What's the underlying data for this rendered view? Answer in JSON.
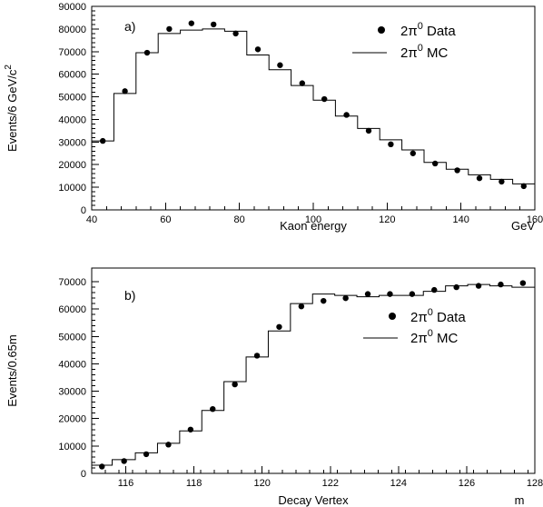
{
  "chart_data": [
    {
      "type": "line",
      "panel_label": "a)",
      "xlabel": "Kaon energy",
      "xunit": "GeV",
      "ylabel": "Events/6 GeV/c",
      "ylabel_sup": "2",
      "xlim": [
        40,
        160
      ],
      "ylim": [
        0,
        90000
      ],
      "xticks": [
        40,
        60,
        80,
        100,
        120,
        140,
        160
      ],
      "yticks": [
        0,
        10000,
        20000,
        30000,
        40000,
        50000,
        60000,
        70000,
        80000,
        90000
      ],
      "legend": {
        "data": {
          "prefix": "2π",
          "sup": "0",
          "suffix": " Data"
        },
        "mc": {
          "prefix": "2π",
          "sup": "0",
          "suffix": " MC"
        }
      },
      "series": [
        {
          "name": "2π0 Data",
          "x": [
            43,
            49,
            55,
            61,
            67,
            73,
            79,
            85,
            91,
            97,
            103,
            109,
            115,
            121,
            127,
            133,
            139,
            145,
            151,
            157
          ],
          "y": [
            30500,
            52500,
            69500,
            80000,
            82500,
            82000,
            78000,
            71000,
            64000,
            56000,
            49000,
            42000,
            35000,
            29000,
            25000,
            20500,
            17500,
            14000,
            12500,
            10500
          ]
        },
        {
          "name": "2π0 MC",
          "bins": [
            40,
            46,
            52,
            58,
            64,
            70,
            76,
            82,
            88,
            94,
            100,
            106,
            112,
            118,
            124,
            130,
            136,
            142,
            148,
            154,
            160
          ],
          "y": [
            30500,
            51500,
            69500,
            78000,
            79500,
            80000,
            79000,
            68500,
            62000,
            55000,
            48500,
            41500,
            36000,
            31000,
            26500,
            21000,
            18000,
            15500,
            13500,
            11500
          ]
        }
      ]
    },
    {
      "type": "line",
      "panel_label": "b)",
      "xlabel": "Decay Vertex",
      "xunit": "m",
      "ylabel": "Events/0.65m",
      "xlim": [
        115,
        128
      ],
      "ylim": [
        0,
        75000
      ],
      "xticks": [
        116,
        118,
        120,
        122,
        124,
        126,
        128
      ],
      "yticks": [
        0,
        10000,
        20000,
        30000,
        40000,
        50000,
        60000,
        70000
      ],
      "legend": {
        "data": {
          "prefix": "2π",
          "sup": "0",
          "suffix": " Data"
        },
        "mc": {
          "prefix": "2π",
          "sup": "0",
          "suffix": " MC"
        }
      },
      "series": [
        {
          "name": "2π0 Data",
          "x": [
            115.3,
            115.95,
            116.6,
            117.25,
            117.9,
            118.55,
            119.2,
            119.85,
            120.5,
            121.15,
            121.8,
            122.45,
            123.1,
            123.75,
            124.4,
            125.05,
            125.7,
            126.35,
            127.0,
            127.65
          ],
          "y": [
            2500,
            4500,
            7000,
            10500,
            16000,
            23500,
            32500,
            43000,
            53500,
            61000,
            63000,
            64000,
            65500,
            65500,
            65500,
            67000,
            68000,
            68500,
            69000,
            69500
          ]
        },
        {
          "name": "2π0 MC",
          "bins": [
            115.0,
            115.6,
            116.28,
            116.93,
            117.58,
            118.23,
            118.88,
            119.53,
            120.18,
            120.83,
            121.48,
            122.13,
            122.78,
            123.43,
            124.08,
            124.73,
            125.38,
            126.03,
            126.68,
            127.33,
            128.0
          ],
          "y": [
            3000,
            5000,
            7500,
            11000,
            15500,
            23000,
            33500,
            42500,
            52000,
            62000,
            65500,
            65000,
            64500,
            65000,
            65000,
            66500,
            68500,
            69000,
            68500,
            68000
          ]
        }
      ]
    }
  ]
}
